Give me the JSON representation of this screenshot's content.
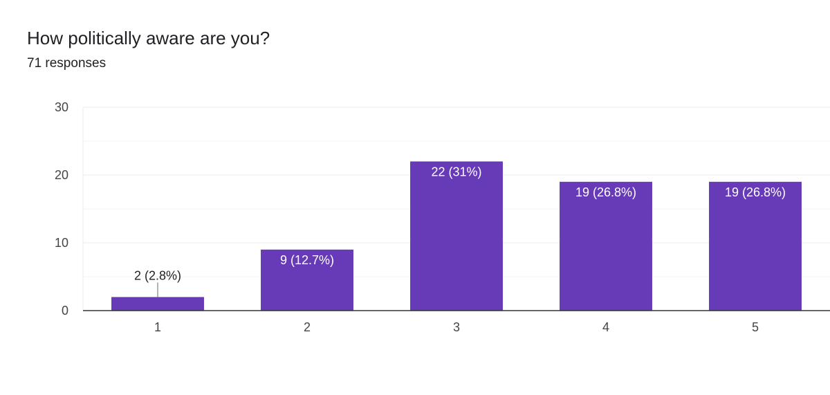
{
  "header": {
    "title": "How politically aware are you?",
    "responses": "71 responses"
  },
  "colors": {
    "bar": "#673ab7",
    "grid": "#ebebeb",
    "axis": "#333333",
    "label_inside": "#ffffff",
    "label_outside": "#222222",
    "leader": "#999999"
  },
  "chart_data": {
    "type": "bar",
    "title": "How politically aware are you?",
    "xlabel": "",
    "ylabel": "",
    "categories": [
      "1",
      "2",
      "3",
      "4",
      "5"
    ],
    "values": [
      2,
      9,
      22,
      19,
      19
    ],
    "data_labels": [
      "2 (2.8%)",
      "9 (12.7%)",
      "22 (31%)",
      "19 (26.8%)",
      "19 (26.8%)"
    ],
    "ylim": [
      0,
      30
    ],
    "y_ticks": [
      0,
      10,
      20,
      30
    ],
    "minor_gridlines": [
      5,
      15,
      25
    ],
    "grid": true,
    "legend": "none"
  }
}
